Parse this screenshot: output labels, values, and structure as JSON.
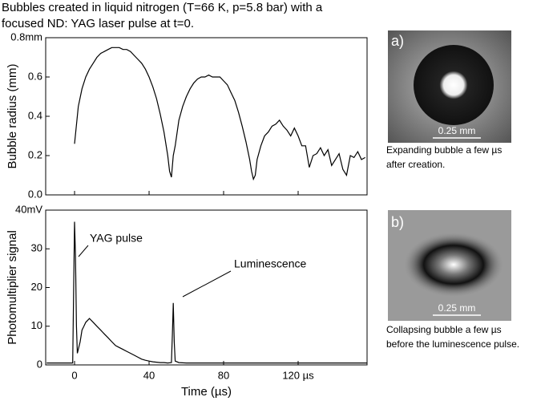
{
  "title": [
    "Bubbles created in liquid nitrogen (T=66 K, p=5.8 bar) with a",
    "focused ND: YAG laser pulse at t=0."
  ],
  "chart_data": [
    {
      "type": "line",
      "ylabel": "Bubble radius (mm)",
      "color": "#000000",
      "x": [
        0,
        2,
        4,
        6,
        8,
        10,
        12,
        14,
        16,
        18,
        20,
        22,
        24,
        26,
        28,
        30,
        32,
        34,
        36,
        38,
        40,
        42,
        44,
        46,
        48,
        50,
        51,
        52,
        53,
        54,
        56,
        58,
        60,
        62,
        64,
        66,
        68,
        70,
        72,
        74,
        76,
        78,
        80,
        82,
        84,
        86,
        88,
        90,
        92,
        94,
        95,
        96,
        97,
        98,
        100,
        102,
        104,
        106,
        108,
        110,
        112,
        114,
        116,
        118,
        120,
        122,
        124,
        126,
        128,
        130,
        132,
        134,
        136,
        138,
        140,
        142,
        144,
        146,
        148,
        150,
        152,
        154,
        156
      ],
      "values": [
        0.26,
        0.45,
        0.54,
        0.6,
        0.64,
        0.67,
        0.7,
        0.72,
        0.73,
        0.74,
        0.75,
        0.75,
        0.75,
        0.74,
        0.74,
        0.73,
        0.71,
        0.69,
        0.67,
        0.64,
        0.6,
        0.55,
        0.49,
        0.41,
        0.32,
        0.2,
        0.12,
        0.09,
        0.2,
        0.25,
        0.38,
        0.45,
        0.5,
        0.54,
        0.57,
        0.59,
        0.6,
        0.6,
        0.61,
        0.6,
        0.6,
        0.6,
        0.58,
        0.56,
        0.52,
        0.48,
        0.42,
        0.35,
        0.27,
        0.18,
        0.12,
        0.08,
        0.1,
        0.18,
        0.25,
        0.3,
        0.32,
        0.35,
        0.36,
        0.38,
        0.35,
        0.33,
        0.3,
        0.34,
        0.3,
        0.25,
        0.25,
        0.14,
        0.2,
        0.21,
        0.24,
        0.2,
        0.23,
        0.15,
        0.18,
        0.21,
        0.13,
        0.1,
        0.2,
        0.19,
        0.22,
        0.18,
        0.19
      ],
      "xlim": [
        -15.5,
        157
      ],
      "xticks": [
        0,
        40,
        80,
        120
      ],
      "show_xtick_labels": false,
      "ylim": [
        0,
        0.8
      ],
      "yticks": [
        {
          "value": 0,
          "label": "0.0"
        },
        0.2,
        0.4,
        0.6,
        {
          "value": 0.8,
          "label": "0.8mm"
        }
      ]
    },
    {
      "type": "line",
      "ylabel": "Photomultiplier signal",
      "xlabel": "Time (µs)",
      "color": "#000000",
      "x": [
        -15,
        -10,
        -5,
        -1,
        0,
        0.5,
        1,
        1.5,
        2,
        3,
        4,
        5,
        6,
        8,
        10,
        12,
        14,
        16,
        18,
        20,
        22,
        24,
        26,
        28,
        30,
        32,
        34,
        36,
        38,
        40,
        42,
        44,
        46,
        48,
        50,
        52,
        52.5,
        53,
        53.5,
        54,
        56,
        60,
        70,
        80,
        90,
        100,
        110,
        120,
        130,
        140,
        150,
        157
      ],
      "values": [
        0.5,
        0.5,
        0.5,
        0.5,
        37,
        28,
        10,
        3,
        4,
        6,
        9,
        10,
        11,
        12,
        11,
        10,
        9,
        8,
        7,
        6,
        5,
        4.5,
        4,
        3.5,
        3,
        2.5,
        2,
        1.5,
        1.2,
        1,
        0.8,
        0.7,
        0.6,
        0.6,
        0.5,
        0.6,
        8,
        16,
        6,
        1,
        0.6,
        0.5,
        0.5,
        0.5,
        0.5,
        0.5,
        0.5,
        0.5,
        0.5,
        0.5,
        0.5,
        0.5
      ],
      "xlim": [
        -15.5,
        157
      ],
      "xticks": [
        0,
        40,
        80,
        {
          "value": 120,
          "label": "120 µs"
        }
      ],
      "show_xtick_labels": true,
      "ylim": [
        0,
        40
      ],
      "yticks": [
        0,
        10,
        20,
        30,
        {
          "value": 40,
          "label": "40mV"
        }
      ],
      "annotations": [
        "YAG pulse",
        "Luminescence"
      ]
    }
  ],
  "images": [
    {
      "panel": "a)",
      "scale": "0.25 mm",
      "caption": [
        "Expanding bubble a few µs",
        "after creation."
      ]
    },
    {
      "panel": "b)",
      "scale": "0.25 mm",
      "caption": [
        "Collapsing bubble a few µs",
        "before the luminescence pulse."
      ]
    }
  ]
}
